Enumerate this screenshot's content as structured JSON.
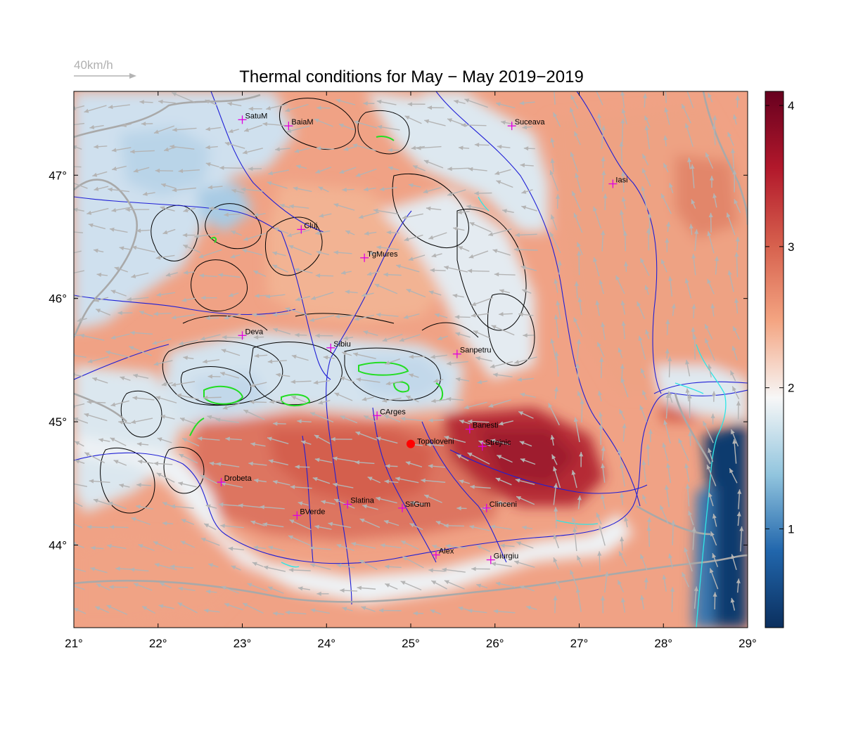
{
  "title": "Thermal conditions for May − May  2019−2019",
  "wind_reference": {
    "label": "40km/h",
    "speed_kmh": 40
  },
  "map": {
    "lon_range": [
      21,
      29
    ],
    "lat_range": [
      43.33,
      47.68
    ],
    "x_ticks": [
      {
        "value": 21,
        "label": "21°"
      },
      {
        "value": 22,
        "label": "22°"
      },
      {
        "value": 23,
        "label": "23°"
      },
      {
        "value": 24,
        "label": "24°"
      },
      {
        "value": 25,
        "label": "25°"
      },
      {
        "value": 26,
        "label": "26°"
      },
      {
        "value": 27,
        "label": "27°"
      },
      {
        "value": 28,
        "label": "28°"
      },
      {
        "value": 29,
        "label": "29°"
      }
    ],
    "y_ticks": [
      {
        "value": 44,
        "label": "44°"
      },
      {
        "value": 45,
        "label": "45°"
      },
      {
        "value": 46,
        "label": "46°"
      },
      {
        "value": 47,
        "label": "47°"
      }
    ],
    "marker": {
      "name": "Topoloveni",
      "lon": 25.0,
      "lat": 44.82,
      "color": "#ff0000"
    },
    "cities": [
      {
        "name": "SatuM",
        "lon": 23.0,
        "lat": 47.45
      },
      {
        "name": "BaiaM",
        "lon": 23.55,
        "lat": 47.4
      },
      {
        "name": "Suceava",
        "lon": 26.2,
        "lat": 47.4
      },
      {
        "name": "Iasi",
        "lon": 27.4,
        "lat": 46.93
      },
      {
        "name": "Cluj",
        "lon": 23.7,
        "lat": 46.56
      },
      {
        "name": "TgMures",
        "lon": 24.45,
        "lat": 46.33
      },
      {
        "name": "Deva",
        "lon": 23.0,
        "lat": 45.7
      },
      {
        "name": "Sibiu",
        "lon": 24.05,
        "lat": 45.6
      },
      {
        "name": "Sanpetru",
        "lon": 25.55,
        "lat": 45.55
      },
      {
        "name": "CArges",
        "lon": 24.6,
        "lat": 45.05
      },
      {
        "name": "Banesti",
        "lon": 25.7,
        "lat": 44.94
      },
      {
        "name": "Strejnic",
        "lon": 25.85,
        "lat": 44.8
      },
      {
        "name": "Drobeta",
        "lon": 22.75,
        "lat": 44.51
      },
      {
        "name": "Slatina",
        "lon": 24.25,
        "lat": 44.33
      },
      {
        "name": "SilGum",
        "lon": 24.9,
        "lat": 44.3
      },
      {
        "name": "Clinceni",
        "lon": 25.9,
        "lat": 44.3
      },
      {
        "name": "BVerde",
        "lon": 23.65,
        "lat": 44.24
      },
      {
        "name": "Alex",
        "lon": 25.3,
        "lat": 43.92
      },
      {
        "name": "Giurgiu",
        "lon": 25.95,
        "lat": 43.88
      }
    ]
  },
  "colorbar": {
    "range": [
      0.3,
      4.1
    ],
    "ticks": [
      {
        "value": 1,
        "label": "1"
      },
      {
        "value": 2,
        "label": "2"
      },
      {
        "value": 3,
        "label": "3"
      },
      {
        "value": 4,
        "label": "4"
      }
    ],
    "colors": [
      "#0b2f5e",
      "#2166ac",
      "#92c5de",
      "#f7f7f7",
      "#f4a582",
      "#d6604d",
      "#b2182b",
      "#67001f"
    ]
  },
  "colors": {
    "contour": "#000000",
    "rivers": "#1f1fd6",
    "borders": "#a9a9a9",
    "wind": "#b4b4b4",
    "city_marker": "#e000e0",
    "high_contour": "#22dd22",
    "coast": "#2ee6e6"
  }
}
